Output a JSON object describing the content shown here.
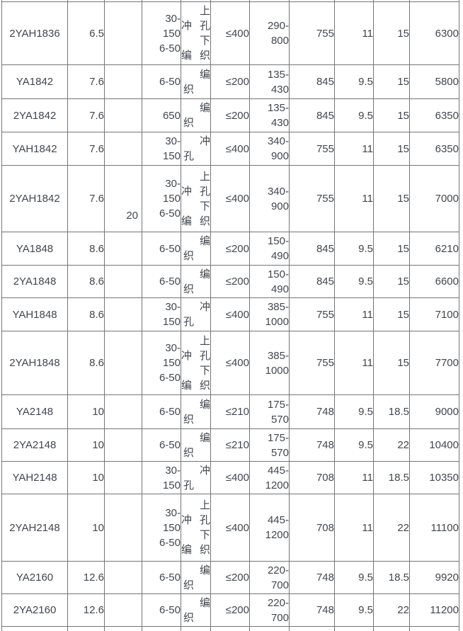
{
  "merged_column_value": "20",
  "table": {
    "rows": [
      {
        "model": "2YAH1836",
        "col2": "6.5",
        "mesh": [
          "30-",
          "150",
          "6-50"
        ],
        "type_text": "上冲孔下编织",
        "type_lines": [
          [
            "上",
            "r"
          ],
          [
            "冲孔",
            "j"
          ],
          [
            "下",
            "r"
          ],
          [
            "编织",
            "j"
          ]
        ],
        "col5": "≤400",
        "col6": [
          "290-",
          "800"
        ],
        "col7": "755",
        "col8": "11",
        "col9": "15",
        "col10": "6300"
      },
      {
        "model": "YA1842",
        "col2": "7.6",
        "mesh": [
          "6-50"
        ],
        "type_text": "编织",
        "type_lines": [
          [
            "编",
            "r"
          ],
          [
            "织",
            "l"
          ]
        ],
        "col5": "≤200",
        "col6": [
          "135-",
          "430"
        ],
        "col7": "845",
        "col8": "9.5",
        "col9": "15",
        "col10": "5800"
      },
      {
        "model": "2YA1842",
        "col2": "7.6",
        "mesh": [
          "650"
        ],
        "type_text": "编织",
        "type_lines": [
          [
            "编",
            "r"
          ],
          [
            "织",
            "l"
          ]
        ],
        "col5": "≤200",
        "col6": [
          "135-",
          "430"
        ],
        "col7": "845",
        "col8": "9.5",
        "col9": "15",
        "col10": "6350"
      },
      {
        "model": "YAH1842",
        "col2": "7.6",
        "mesh": [
          "30-",
          "150"
        ],
        "type_text": "冲孔",
        "type_lines": [
          [
            "冲",
            "r"
          ],
          [
            "孔",
            "l"
          ]
        ],
        "col5": "≤400",
        "col6": [
          "340-",
          "900"
        ],
        "col7": "755",
        "col8": "11",
        "col9": "15",
        "col10": "6350"
      },
      {
        "model": "2YAH1842",
        "col2": "7.6",
        "mesh": [
          "30-",
          "150",
          "6-50"
        ],
        "type_text": "上冲孔下编织",
        "type_lines": [
          [
            "上",
            "r"
          ],
          [
            "冲孔",
            "j"
          ],
          [
            "下",
            "r"
          ],
          [
            "编织",
            "j"
          ]
        ],
        "col5": "≤400",
        "col6": [
          "340-",
          "900"
        ],
        "col7": "755",
        "col8": "11",
        "col9": "15",
        "col10": "7000"
      },
      {
        "model": "YA1848",
        "col2": "8.6",
        "mesh": [
          "6-50"
        ],
        "type_text": "编织",
        "type_lines": [
          [
            "编",
            "r"
          ],
          [
            "织",
            "l"
          ]
        ],
        "col5": "≤200",
        "col6": [
          "150-",
          "490"
        ],
        "col7": "845",
        "col8": "9.5",
        "col9": "15",
        "col10": "6210"
      },
      {
        "model": "2YA1848",
        "col2": "8.6",
        "mesh": [
          "6-50"
        ],
        "type_text": "编织",
        "type_lines": [
          [
            "编",
            "r"
          ],
          [
            "织",
            "l"
          ]
        ],
        "col5": "≤200",
        "col6": [
          "150-",
          "490"
        ],
        "col7": "845",
        "col8": "9.5",
        "col9": "15",
        "col10": "6600"
      },
      {
        "model": "YAH1848",
        "col2": "8.6",
        "mesh": [
          "30-",
          "150"
        ],
        "type_text": "冲孔",
        "type_lines": [
          [
            "冲",
            "r"
          ],
          [
            "孔",
            "l"
          ]
        ],
        "col5": "≤400",
        "col6": [
          "385-",
          "1000"
        ],
        "col7": "755",
        "col8": "11",
        "col9": "15",
        "col10": "7100"
      },
      {
        "model": "2YAH1848",
        "col2": "8.6",
        "mesh": [
          "30-",
          "150",
          "6-50"
        ],
        "type_text": "上冲孔下编织",
        "type_lines": [
          [
            "上",
            "r"
          ],
          [
            "冲孔",
            "j"
          ],
          [
            "下",
            "r"
          ],
          [
            "编织",
            "j"
          ]
        ],
        "col5": "≤400",
        "col6": [
          "385-",
          "1000"
        ],
        "col7": "755",
        "col8": "11",
        "col9": "15",
        "col10": "7700"
      },
      {
        "model": "YA2148",
        "col2": "10",
        "mesh": [
          "6-50"
        ],
        "type_text": "编织",
        "type_lines": [
          [
            "编",
            "r"
          ],
          [
            "织",
            "l"
          ]
        ],
        "col5": "≤210",
        "col6": [
          "175-",
          "570"
        ],
        "col7": "748",
        "col8": "9.5",
        "col9": "18.5",
        "col10": "9000"
      },
      {
        "model": "2YA2148",
        "col2": "10",
        "mesh": [
          "6-50"
        ],
        "type_text": "编织",
        "type_lines": [
          [
            "编",
            "r"
          ],
          [
            "织",
            "l"
          ]
        ],
        "col5": "≤210",
        "col6": [
          "175-",
          "570"
        ],
        "col7": "748",
        "col8": "9.5",
        "col9": "22",
        "col10": "10400"
      },
      {
        "model": "YAH2148",
        "col2": "10",
        "mesh": [
          "30-",
          "150"
        ],
        "type_text": "冲孔",
        "type_lines": [
          [
            "冲",
            "r"
          ],
          [
            "孔",
            "l"
          ]
        ],
        "col5": "≤400",
        "col6": [
          "445-",
          "1200"
        ],
        "col7": "708",
        "col8": "11",
        "col9": "18.5",
        "col10": "10350"
      },
      {
        "model": "2YAH2148",
        "col2": "10",
        "mesh": [
          "30-",
          "150",
          "6-50"
        ],
        "type_text": "上冲孔下编织",
        "type_lines": [
          [
            "上",
            "r"
          ],
          [
            "冲孔",
            "j"
          ],
          [
            "下",
            "r"
          ],
          [
            "编织",
            "j"
          ]
        ],
        "col5": "≤400",
        "col6": [
          "445-",
          "1200"
        ],
        "col7": "708",
        "col8": "11",
        "col9": "22",
        "col10": "11100"
      },
      {
        "model": "YA2160",
        "col2": "12.6",
        "mesh": [
          "6-50"
        ],
        "type_text": "编织",
        "type_lines": [
          [
            "编",
            "r"
          ],
          [
            "织",
            "l"
          ]
        ],
        "col5": "≤200",
        "col6": [
          "220-",
          "700"
        ],
        "col7": "748",
        "col8": "9.5",
        "col9": "18.5",
        "col10": "9920"
      },
      {
        "model": "2YA2160",
        "col2": "12.6",
        "mesh": [
          "6-50"
        ],
        "type_text": "编织",
        "type_lines": [
          [
            "编",
            "r"
          ],
          [
            "织",
            "l"
          ]
        ],
        "col5": "≤200",
        "col6": [
          "220-",
          "700"
        ],
        "col7": "748",
        "col8": "9.5",
        "col9": "22",
        "col10": "11200"
      }
    ]
  }
}
